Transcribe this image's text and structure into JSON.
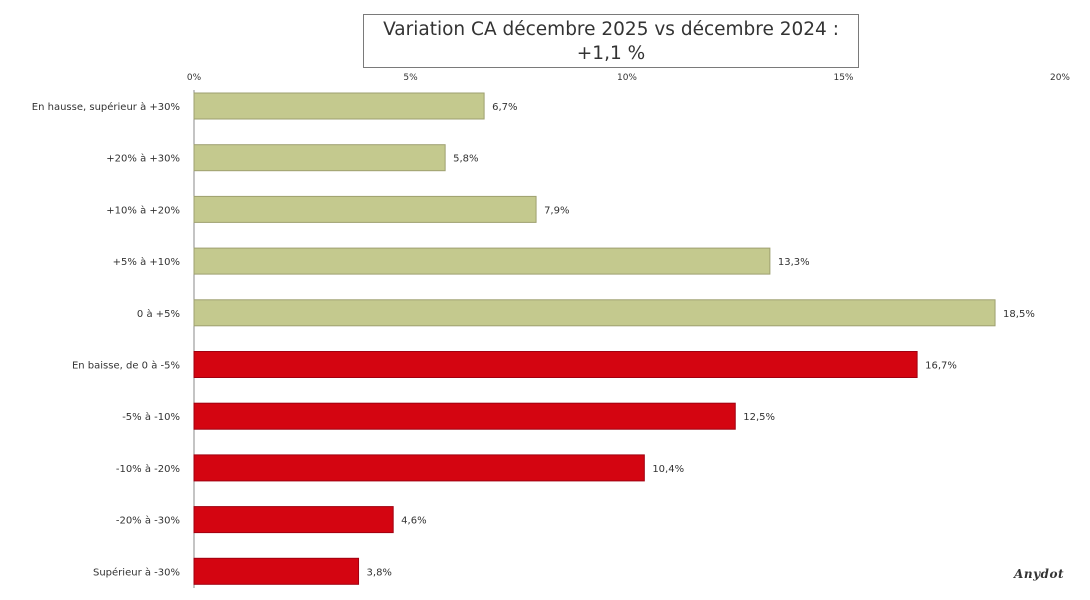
{
  "chart_data": {
    "type": "bar",
    "orientation": "horizontal",
    "title_line1": "Variation CA décembre 2025 vs décembre 2024 :",
    "title_line2": "+1,1 %",
    "xlabel": "",
    "ylabel": "",
    "xlim": [
      0,
      20
    ],
    "x_ticks": [
      "0%",
      "5%",
      "10%",
      "15%",
      "20%"
    ],
    "x_tick_values": [
      0,
      5,
      10,
      15,
      20
    ],
    "categories": [
      "En hausse, supérieur à +30%",
      "+20% à +30%",
      "+10% à +20%",
      "+5% à +10%",
      "0 à +5%",
      "En baisse, de 0 à -5%",
      "-5% à -10%",
      "-10% à -20%",
      "-20% à -30%",
      "Supérieur à -30%"
    ],
    "values": [
      6.7,
      5.8,
      7.9,
      13.3,
      18.5,
      16.7,
      12.5,
      10.4,
      4.6,
      3.8
    ],
    "value_labels": [
      "6,7%",
      "5,8%",
      "7,9%",
      "13,3%",
      "18,5%",
      "16,7%",
      "12,5%",
      "10,4%",
      "4,6%",
      "3,8%"
    ],
    "grid": false,
    "legend": "none"
  },
  "colors": {
    "increase": "#c4c98e",
    "decrease": "#d40511",
    "text": "#333333"
  },
  "watermark": "Anydot"
}
